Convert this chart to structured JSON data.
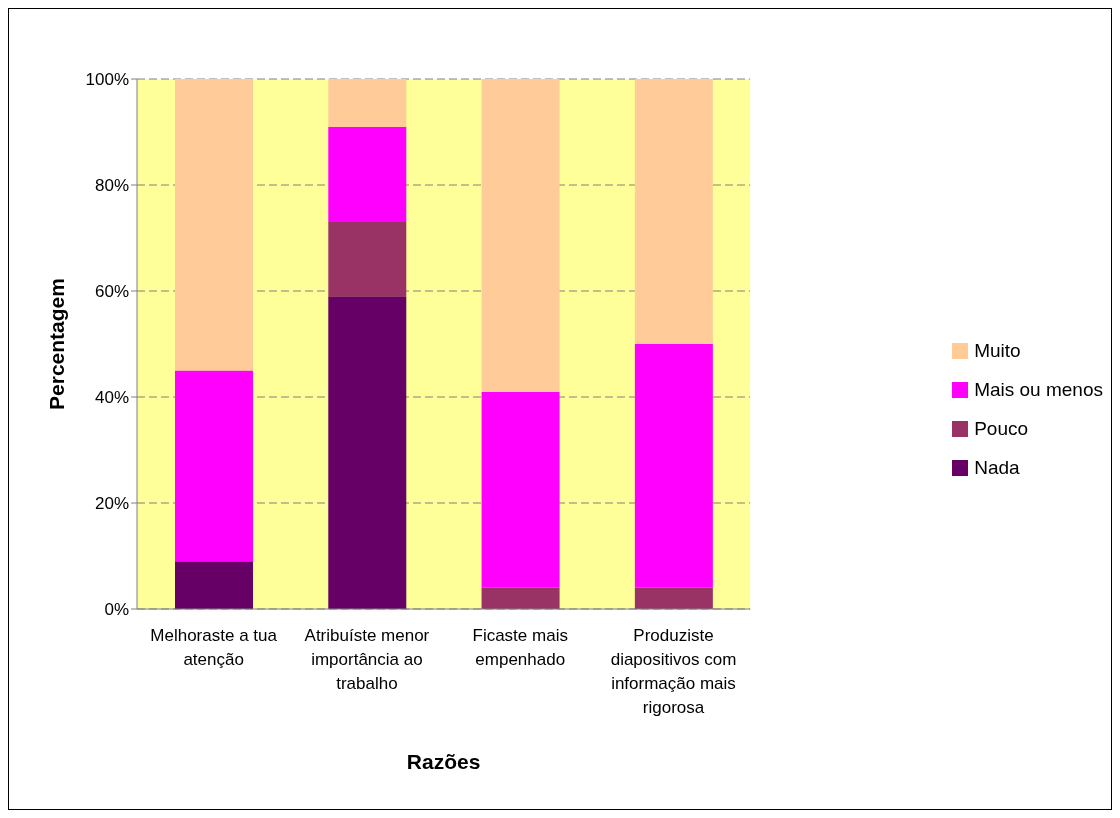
{
  "chart_data": {
    "type": "bar",
    "stacked": true,
    "xlabel": "Razões",
    "ylabel": "Percentagem",
    "categories": [
      "Melhoraste a tua atenção",
      "Atribuíste menor importância ao trabalho",
      "Ficaste mais empenhado",
      "Produziste diapositivos com informação mais rigorosa"
    ],
    "series": [
      {
        "name": "Nada",
        "color": "#660066",
        "values": [
          9,
          59,
          0,
          0
        ]
      },
      {
        "name": "Pouco",
        "color": "#993366",
        "values": [
          0,
          14,
          4,
          4
        ]
      },
      {
        "name": "Mais ou menos",
        "color": "#ff00ff",
        "values": [
          36,
          18,
          37,
          46
        ]
      },
      {
        "name": "Muito",
        "color": "#ffcc99",
        "values": [
          55,
          9,
          59,
          50
        ]
      }
    ],
    "ylim": [
      0,
      100
    ],
    "yticks": [
      {
        "value": 0,
        "label": "0%"
      },
      {
        "value": 20,
        "label": "20%"
      },
      {
        "value": 40,
        "label": "40%"
      },
      {
        "value": 60,
        "label": "60%"
      },
      {
        "value": 80,
        "label": "80%"
      },
      {
        "value": 100,
        "label": "100%"
      }
    ],
    "grid": "y",
    "legend": "right"
  }
}
